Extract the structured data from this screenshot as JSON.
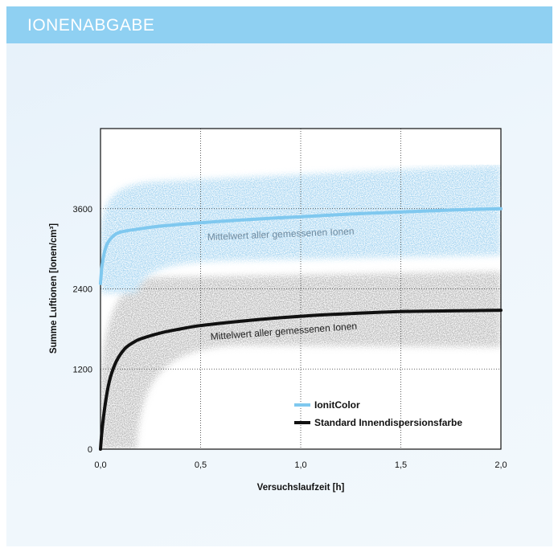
{
  "header": {
    "title": "IONENABGABE"
  },
  "chart_data": {
    "type": "line",
    "xlabel": "Versuchslaufzeit [h]",
    "ylabel": "Summe Luftionen [Ionen/cm³]",
    "xlim": [
      0,
      2.0
    ],
    "ylim": [
      0,
      4800
    ],
    "xticks": [
      0,
      0.5,
      1.0,
      1.5,
      2.0
    ],
    "xtick_labels": [
      "0,0",
      "0,5",
      "1,0",
      "1,5",
      "2,0"
    ],
    "yticks": [
      0,
      1200,
      2400,
      3600
    ],
    "ytick_labels": [
      "0",
      "1200",
      "2400",
      "3600"
    ],
    "grid": "dotted vertical and horizontal lines",
    "legend_position": "bottom-right",
    "series": [
      {
        "name": "IonitColor",
        "color": "#7fc8ef",
        "x": [
          0,
          0.01,
          0.03,
          0.06,
          0.1,
          0.2,
          0.3,
          0.5,
          0.75,
          1.0,
          1.25,
          1.5,
          1.75,
          2.0
        ],
        "y": [
          2480,
          2800,
          3050,
          3180,
          3250,
          3300,
          3340,
          3390,
          3440,
          3480,
          3520,
          3550,
          3580,
          3600
        ]
      },
      {
        "name": "Standard Innendispersionsfarbe",
        "color": "#111111",
        "x": [
          0,
          0.01,
          0.03,
          0.05,
          0.08,
          0.12,
          0.16,
          0.2,
          0.3,
          0.4,
          0.5,
          0.75,
          1.0,
          1.25,
          1.5,
          1.75,
          2.0
        ],
        "y": [
          0,
          350,
          800,
          1080,
          1320,
          1500,
          1590,
          1650,
          1740,
          1800,
          1850,
          1930,
          1990,
          2030,
          2060,
          2070,
          2080
        ]
      }
    ],
    "annotations": [
      {
        "text": "Mittelwert aller gemessenen Ionen",
        "series": "IonitColor"
      },
      {
        "text": "Mittelwert aller gemessenen Ionen",
        "series": "Standard Innendispersionsfarbe"
      }
    ]
  }
}
